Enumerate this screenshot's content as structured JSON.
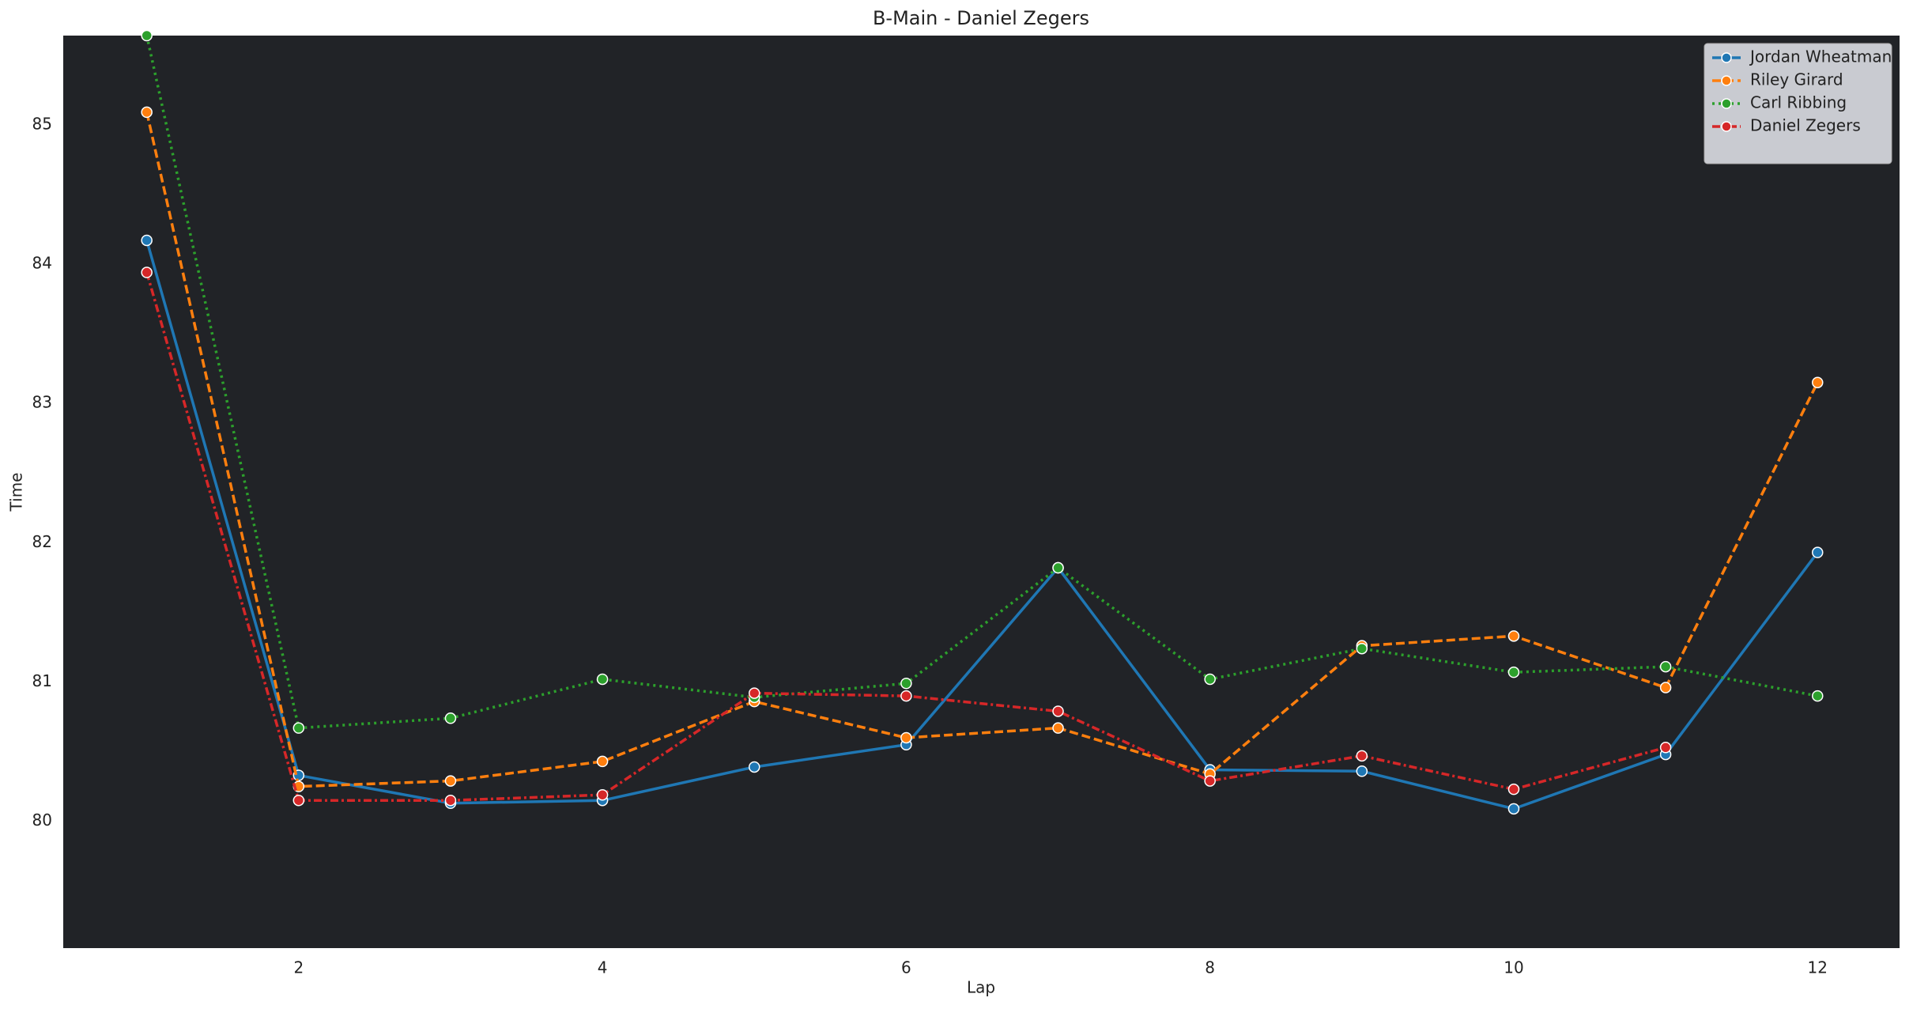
{
  "chart_data": {
    "type": "line",
    "title": "B-Main - Daniel Zegers",
    "xlabel": "Lap",
    "ylabel": "Time",
    "x": [
      1,
      2,
      3,
      4,
      5,
      6,
      7,
      8,
      9,
      10,
      11,
      12
    ],
    "series": [
      {
        "name": "Jordan Wheatman",
        "color": "#1f77b4",
        "linestyle": "solid",
        "values": [
          84.17,
          80.33,
          80.13,
          80.15,
          80.39,
          80.55,
          81.82,
          80.37,
          80.36,
          80.09,
          80.48,
          81.93
        ]
      },
      {
        "name": "Riley Girard",
        "color": "#ff7f0e",
        "linestyle": "dashed",
        "values": [
          85.09,
          80.25,
          80.29,
          80.43,
          80.86,
          80.6,
          80.67,
          80.34,
          81.26,
          81.33,
          80.96,
          83.15
        ]
      },
      {
        "name": "Carl Ribbing",
        "color": "#2ca02c",
        "linestyle": "dotted",
        "values": [
          85.64,
          80.67,
          80.74,
          81.02,
          80.89,
          80.99,
          81.82,
          81.02,
          81.24,
          81.07,
          81.11,
          80.9
        ]
      },
      {
        "name": "Daniel Zegers",
        "color": "#d62728",
        "linestyle": "dashdot",
        "values": [
          83.94,
          80.15,
          80.15,
          80.19,
          80.92,
          80.9,
          80.79,
          80.29,
          80.47,
          80.23,
          80.53,
          null
        ]
      }
    ],
    "xlim": [
      0.45,
      12.54
    ],
    "ylim": [
      79.09,
      85.64
    ],
    "xticks": [
      2,
      4,
      6,
      8,
      10,
      12
    ],
    "yticks": [
      80,
      81,
      82,
      83,
      84,
      85
    ],
    "grid": false,
    "legend": "upper right",
    "background": "#212327"
  }
}
